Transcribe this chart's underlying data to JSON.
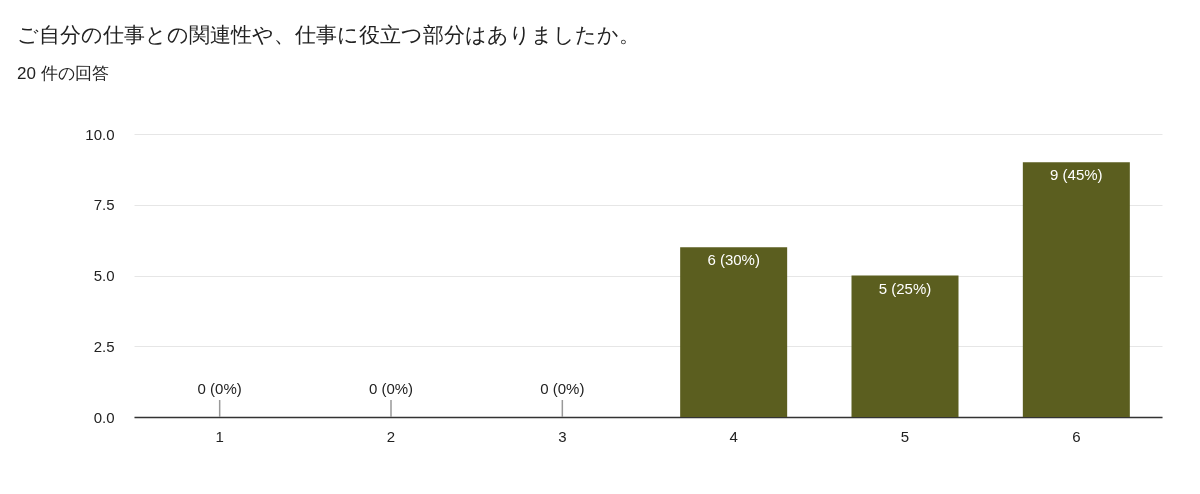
{
  "chart_data": {
    "type": "bar",
    "title": "ご自分の仕事との関連性や、仕事に役立つ部分はありましたか。",
    "subtitle": "20 件の回答",
    "categories": [
      "1",
      "2",
      "3",
      "4",
      "5",
      "6"
    ],
    "values": [
      0,
      0,
      0,
      6,
      5,
      9
    ],
    "value_labels": [
      "0 (0%)",
      "0 (0%)",
      "0 (0%)",
      "6 (30%)",
      "5 (25%)",
      "9 (45%)"
    ],
    "color": "#5b5e1f",
    "ylim": [
      0,
      10
    ],
    "yticks": [
      {
        "value": 0,
        "label": "0.0"
      },
      {
        "value": 2.5,
        "label": "2.5"
      },
      {
        "value": 5,
        "label": "5.0"
      },
      {
        "value": 7.5,
        "label": "7.5"
      },
      {
        "value": 10,
        "label": "10.0"
      }
    ],
    "grid": "y"
  }
}
